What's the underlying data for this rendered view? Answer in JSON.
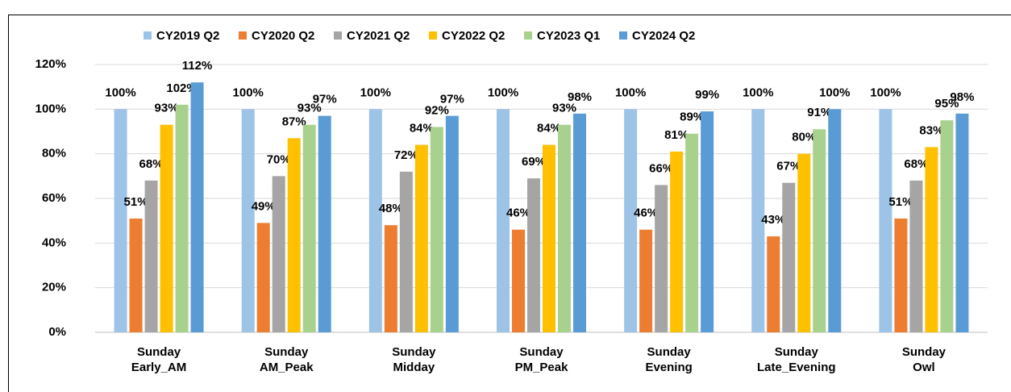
{
  "chart_data": {
    "type": "bar",
    "categories": [
      "Sunday\nEarly_AM",
      "Sunday\nAM_Peak",
      "Sunday\nMidday",
      "Sunday\nPM_Peak",
      "Sunday\nEvening",
      "Sunday\nLate_Evening",
      "Sunday\nOwl"
    ],
    "series": [
      {
        "name": "CY2019 Q2",
        "color": "#9dc3e6",
        "values": [
          100,
          100,
          100,
          100,
          100,
          100,
          100
        ],
        "value_labels": [
          "100%",
          "100%",
          "100%",
          "100%",
          "100%",
          "100%",
          "100%"
        ]
      },
      {
        "name": "CY2020 Q2",
        "color": "#ed7d31",
        "values": [
          51,
          49,
          48,
          46,
          46,
          43,
          51
        ],
        "value_labels": [
          "51%",
          "49%",
          "48%",
          "46%",
          "46%",
          "43%",
          "51%"
        ]
      },
      {
        "name": "CY2021 Q2",
        "color": "#a5a5a5",
        "values": [
          68,
          70,
          72,
          69,
          66,
          67,
          68
        ],
        "value_labels": [
          "68%",
          "70%",
          "72%",
          "69%",
          "66%",
          "67%",
          "68%"
        ]
      },
      {
        "name": "CY2022 Q2",
        "color": "#ffc000",
        "values": [
          93,
          87,
          84,
          84,
          81,
          80,
          83
        ],
        "value_labels": [
          "93%",
          "87%",
          "84%",
          "84%",
          "81%",
          "80%",
          "83%"
        ]
      },
      {
        "name": "CY2023 Q1",
        "color": "#a9d18e",
        "values": [
          102,
          93,
          92,
          93,
          89,
          91,
          95
        ],
        "value_labels": [
          "102%",
          "93%",
          "92%",
          "93%",
          "89%",
          "91%",
          "95%"
        ]
      },
      {
        "name": "CY2024 Q2",
        "color": "#5b9bd5",
        "values": [
          112,
          97,
          97,
          98,
          99,
          100,
          98
        ],
        "value_labels": [
          "112%",
          "97%",
          "97%",
          "98%",
          "99%",
          "100%",
          "98%"
        ]
      }
    ],
    "ylim": [
      0,
      120
    ],
    "yticks": [
      {
        "value": 0,
        "label": "0%"
      },
      {
        "value": 20,
        "label": "20%"
      },
      {
        "value": 40,
        "label": "40%"
      },
      {
        "value": 60,
        "label": "60%"
      },
      {
        "value": 80,
        "label": "80%"
      },
      {
        "value": 100,
        "label": "100%"
      },
      {
        "value": 120,
        "label": "120%"
      }
    ],
    "grid": true,
    "legend": "top"
  }
}
